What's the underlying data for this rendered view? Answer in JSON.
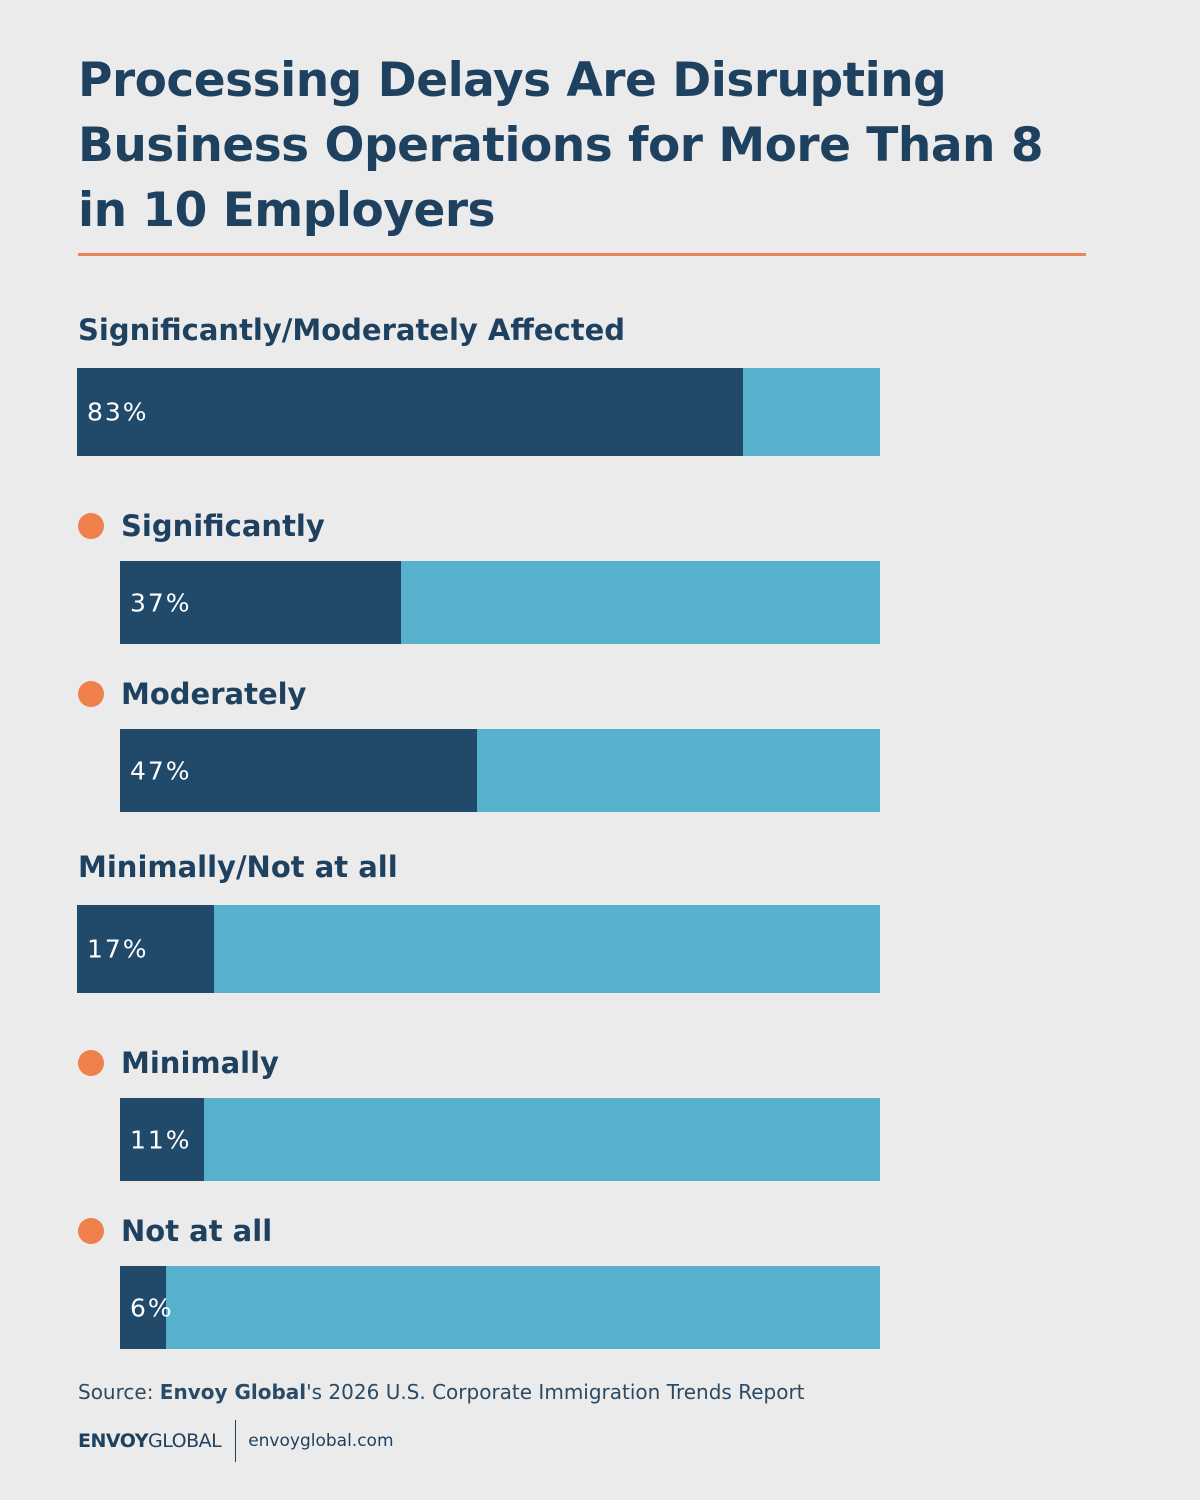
{
  "chart_data": {
    "type": "bar",
    "title": "Processing Delays Are Disrupting Business Operations for More Than 8 in 10 Employers",
    "groups": [
      {
        "category": "Significantly/Moderately Affected",
        "value": 83,
        "value_label": "83%",
        "subcategories": [
          "Significantly",
          "Moderately"
        ],
        "values": [
          37,
          47
        ],
        "value_labels": [
          "37%",
          "47%"
        ]
      },
      {
        "category": "Minimally/Not at all",
        "value": 17,
        "value_label": "17%",
        "subcategories": [
          "Minimally",
          "Not at all"
        ],
        "values": [
          11,
          6
        ],
        "value_labels": [
          "11%",
          "6%"
        ]
      }
    ],
    "xlim": [
      0,
      100
    ],
    "color": "#21496a",
    "track_color": "#58b1cc",
    "bullet_color": "#ef7f4b",
    "source": {
      "prefix": "Source: ",
      "brand": "Envoy Global",
      "suffix": "'s 2026 U.S. Corporate Immigration Trends Report"
    },
    "footer": {
      "logo_bold": "ENVOY",
      "logo_light": "GLOBAL",
      "url": "envoyglobal.com"
    }
  }
}
